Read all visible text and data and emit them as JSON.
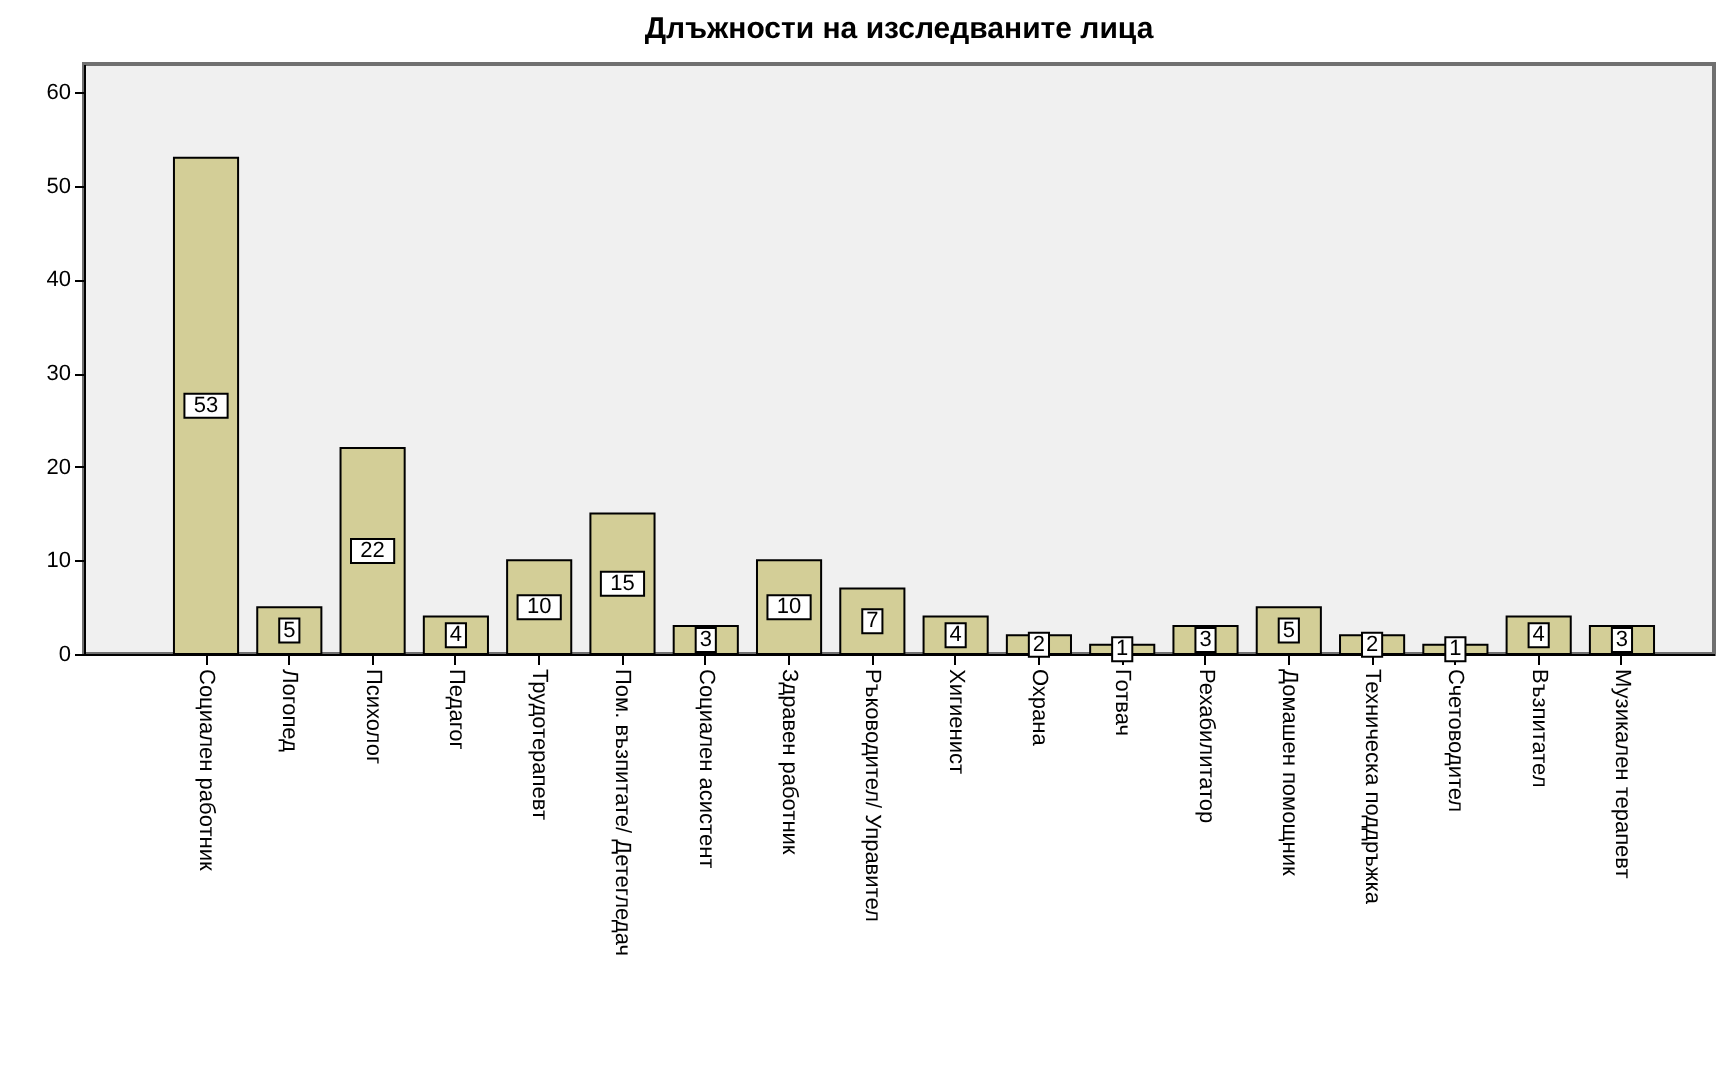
{
  "chart_data": {
    "type": "bar",
    "title": "Длъжности на изследваните лица",
    "categories": [
      "Социален работник",
      "Логопед",
      "Психолог",
      "Педагог",
      "Трудотерапевт",
      "Пом. възпитате/ Детегледач",
      "Социален асистент",
      "Здравен работник",
      "Ръководител/ Управител",
      "Хигиенист",
      "Охрана",
      "Готвач",
      "Рехабилитатор",
      "Домашен помощник",
      "Техническа поддръжка",
      "Счетоводител",
      "Възпитател",
      "Музикален терапевт"
    ],
    "values": [
      53,
      5,
      22,
      4,
      10,
      15,
      3,
      10,
      7,
      4,
      2,
      1,
      3,
      5,
      2,
      1,
      4,
      3
    ],
    "color": "#d3ce97",
    "ylim": [
      0,
      63
    ],
    "yticks": [
      0,
      10,
      20,
      30,
      40,
      50,
      60
    ],
    "data_labels": true
  }
}
